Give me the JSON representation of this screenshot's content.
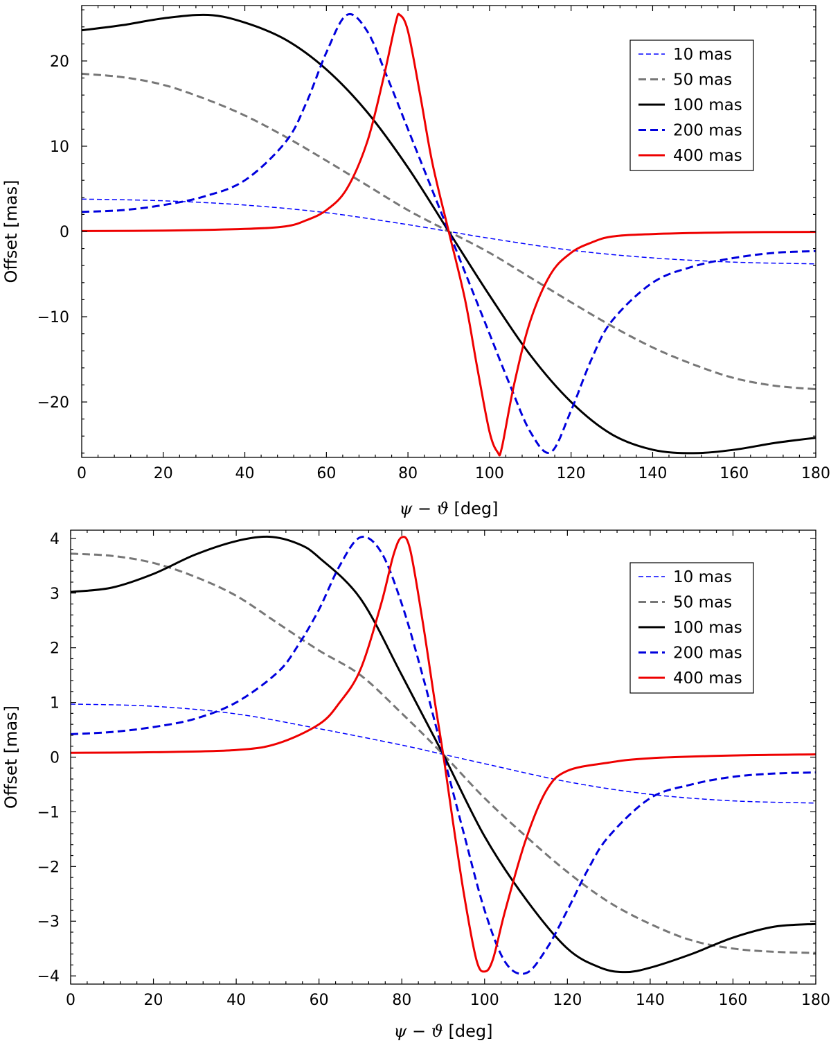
{
  "chart_data": [
    {
      "type": "line",
      "panel": "top",
      "xlabel": {
        "psi": "ψ",
        "minus": " − ",
        "theta": "ϑ",
        "unit": " [deg]"
      },
      "ylabel": "Offset [mas]",
      "xlim": [
        0,
        180
      ],
      "ylim": [
        -26.5,
        26.5
      ],
      "xticks": [
        0,
        20,
        40,
        60,
        80,
        100,
        120,
        140,
        160,
        180
      ],
      "yticks": [
        -20,
        -10,
        0,
        10,
        20
      ],
      "legend_position": "top-right",
      "series": [
        {
          "name": "10 mas",
          "color": "#0000ff",
          "style": "dashed-thin",
          "points": [
            [
              0,
              3.8
            ],
            [
              20,
              3.6
            ],
            [
              40,
              3.1
            ],
            [
              60,
              2.2
            ],
            [
              80,
              0.8
            ],
            [
              90,
              0
            ],
            [
              100,
              -0.8
            ],
            [
              120,
              -2.2
            ],
            [
              140,
              -3.1
            ],
            [
              160,
              -3.6
            ],
            [
              180,
              -3.8
            ]
          ]
        },
        {
          "name": "50 mas",
          "color": "#777777",
          "style": "dashed",
          "points": [
            [
              0,
              18.5
            ],
            [
              10,
              18.1
            ],
            [
              20,
              17.2
            ],
            [
              30,
              15.6
            ],
            [
              40,
              13.6
            ],
            [
              50,
              11.1
            ],
            [
              60,
              8.3
            ],
            [
              70,
              5.4
            ],
            [
              80,
              2.5
            ],
            [
              90,
              0
            ],
            [
              100,
              -2.5
            ],
            [
              110,
              -5.4
            ],
            [
              120,
              -8.3
            ],
            [
              130,
              -11.1
            ],
            [
              140,
              -13.6
            ],
            [
              150,
              -15.6
            ],
            [
              160,
              -17.2
            ],
            [
              170,
              -18.1
            ],
            [
              180,
              -18.5
            ]
          ]
        },
        {
          "name": "100 mas",
          "color": "#000000",
          "style": "solid",
          "points": [
            [
              0,
              23.6
            ],
            [
              10,
              24.2
            ],
            [
              20,
              25.0
            ],
            [
              31,
              25.4
            ],
            [
              40,
              24.5
            ],
            [
              50,
              22.5
            ],
            [
              60,
              19.0
            ],
            [
              70,
              14.0
            ],
            [
              80,
              7.5
            ],
            [
              90,
              0
            ],
            [
              100,
              -7.5
            ],
            [
              110,
              -14.5
            ],
            [
              120,
              -20.0
            ],
            [
              130,
              -23.8
            ],
            [
              140,
              -25.6
            ],
            [
              150,
              -26.0
            ],
            [
              160,
              -25.6
            ],
            [
              170,
              -24.8
            ],
            [
              180,
              -24.2
            ]
          ]
        },
        {
          "name": "200 mas",
          "color": "#0000dd",
          "style": "dashed-thick",
          "points": [
            [
              0,
              2.3
            ],
            [
              10,
              2.5
            ],
            [
              20,
              3.1
            ],
            [
              30,
              4.1
            ],
            [
              40,
              6.0
            ],
            [
              50,
              10.5
            ],
            [
              55,
              15.0
            ],
            [
              60,
              21.0
            ],
            [
              65,
              25.4
            ],
            [
              70,
              23.5
            ],
            [
              75,
              18.0
            ],
            [
              80,
              12.0
            ],
            [
              85,
              6.0
            ],
            [
              90,
              0
            ],
            [
              95,
              -6.0
            ],
            [
              100,
              -12.0
            ],
            [
              105,
              -18.0
            ],
            [
              110,
              -23.5
            ],
            [
              115,
              -25.9
            ],
            [
              120,
              -21.0
            ],
            [
              125,
              -15.0
            ],
            [
              130,
              -10.5
            ],
            [
              140,
              -6.0
            ],
            [
              150,
              -4.1
            ],
            [
              160,
              -3.1
            ],
            [
              170,
              -2.5
            ],
            [
              180,
              -2.3
            ]
          ]
        },
        {
          "name": "400 mas",
          "color": "#ee0000",
          "style": "solid",
          "points": [
            [
              0,
              0.05
            ],
            [
              20,
              0.1
            ],
            [
              40,
              0.3
            ],
            [
              50,
              0.6
            ],
            [
              55,
              1.3
            ],
            [
              60,
              2.5
            ],
            [
              65,
              5.0
            ],
            [
              70,
              10.5
            ],
            [
              74,
              18.0
            ],
            [
              77,
              24.5
            ],
            [
              78,
              25.4
            ],
            [
              80,
              23.5
            ],
            [
              83,
              16.0
            ],
            [
              86,
              8.0
            ],
            [
              90,
              0
            ],
            [
              94,
              -8.0
            ],
            [
              97,
              -16.0
            ],
            [
              100,
              -23.5
            ],
            [
              102,
              -25.9
            ],
            [
              103,
              -25.4
            ],
            [
              106,
              -18.0
            ],
            [
              110,
              -10.5
            ],
            [
              115,
              -5.0
            ],
            [
              120,
              -2.5
            ],
            [
              125,
              -1.3
            ],
            [
              130,
              -0.6
            ],
            [
              140,
              -0.3
            ],
            [
              160,
              -0.1
            ],
            [
              180,
              -0.05
            ]
          ]
        }
      ]
    },
    {
      "type": "line",
      "panel": "bottom",
      "xlabel": {
        "psi": "ψ",
        "minus": " − ",
        "theta": "ϑ",
        "unit": " [deg]"
      },
      "ylabel": "Offset [mas]",
      "xlim": [
        0,
        180
      ],
      "ylim": [
        -4.15,
        4.15
      ],
      "xticks": [
        0,
        20,
        40,
        60,
        80,
        100,
        120,
        140,
        160,
        180
      ],
      "yticks": [
        -4,
        -3,
        -2,
        -1,
        0,
        1,
        2,
        3,
        4
      ],
      "legend_position": "top-right",
      "series": [
        {
          "name": "10 mas",
          "color": "#0000ff",
          "style": "dashed-thin",
          "points": [
            [
              0,
              0.97
            ],
            [
              20,
              0.93
            ],
            [
              40,
              0.79
            ],
            [
              60,
              0.52
            ],
            [
              80,
              0.22
            ],
            [
              90,
              0.05
            ],
            [
              100,
              -0.12
            ],
            [
              120,
              -0.45
            ],
            [
              140,
              -0.68
            ],
            [
              160,
              -0.8
            ],
            [
              180,
              -0.84
            ]
          ]
        },
        {
          "name": "50 mas",
          "color": "#777777",
          "style": "dashed",
          "points": [
            [
              0,
              3.72
            ],
            [
              10,
              3.68
            ],
            [
              20,
              3.55
            ],
            [
              30,
              3.3
            ],
            [
              40,
              2.95
            ],
            [
              50,
              2.45
            ],
            [
              60,
              1.95
            ],
            [
              70,
              1.5
            ],
            [
              80,
              0.8
            ],
            [
              90,
              0.05
            ],
            [
              100,
              -0.75
            ],
            [
              110,
              -1.45
            ],
            [
              120,
              -2.1
            ],
            [
              130,
              -2.65
            ],
            [
              140,
              -3.05
            ],
            [
              150,
              -3.35
            ],
            [
              160,
              -3.5
            ],
            [
              170,
              -3.56
            ],
            [
              180,
              -3.58
            ]
          ]
        },
        {
          "name": "100 mas",
          "color": "#000000",
          "style": "solid",
          "points": [
            [
              0,
              3.02
            ],
            [
              10,
              3.1
            ],
            [
              20,
              3.35
            ],
            [
              30,
              3.7
            ],
            [
              40,
              3.95
            ],
            [
              48,
              4.03
            ],
            [
              55,
              3.9
            ],
            [
              60,
              3.65
            ],
            [
              70,
              2.9
            ],
            [
              80,
              1.5
            ],
            [
              90,
              0.05
            ],
            [
              100,
              -1.45
            ],
            [
              110,
              -2.6
            ],
            [
              120,
              -3.5
            ],
            [
              128,
              -3.85
            ],
            [
              134,
              -3.93
            ],
            [
              140,
              -3.85
            ],
            [
              150,
              -3.6
            ],
            [
              160,
              -3.3
            ],
            [
              170,
              -3.1
            ],
            [
              180,
              -3.05
            ]
          ]
        },
        {
          "name": "200 mas",
          "color": "#0000dd",
          "style": "dashed-thick",
          "points": [
            [
              0,
              0.42
            ],
            [
              10,
              0.46
            ],
            [
              20,
              0.55
            ],
            [
              30,
              0.7
            ],
            [
              40,
              1.0
            ],
            [
              50,
              1.55
            ],
            [
              55,
              2.05
            ],
            [
              60,
              2.7
            ],
            [
              65,
              3.5
            ],
            [
              70,
              4.02
            ],
            [
              75,
              3.75
            ],
            [
              80,
              2.8
            ],
            [
              85,
              1.5
            ],
            [
              90,
              0.05
            ],
            [
              95,
              -1.4
            ],
            [
              100,
              -2.8
            ],
            [
              105,
              -3.75
            ],
            [
              110,
              -3.95
            ],
            [
              115,
              -3.5
            ],
            [
              120,
              -2.8
            ],
            [
              125,
              -2.05
            ],
            [
              130,
              -1.45
            ],
            [
              140,
              -0.75
            ],
            [
              150,
              -0.5
            ],
            [
              160,
              -0.36
            ],
            [
              170,
              -0.3
            ],
            [
              180,
              -0.28
            ]
          ]
        },
        {
          "name": "400 mas",
          "color": "#ee0000",
          "style": "solid",
          "points": [
            [
              0,
              0.08
            ],
            [
              20,
              0.09
            ],
            [
              40,
              0.13
            ],
            [
              50,
              0.25
            ],
            [
              60,
              0.6
            ],
            [
              65,
              1.0
            ],
            [
              70,
              1.6
            ],
            [
              75,
              2.8
            ],
            [
              78,
              3.7
            ],
            [
              80,
              4.02
            ],
            [
              82,
              3.8
            ],
            [
              85,
              2.5
            ],
            [
              88,
              1.0
            ],
            [
              90,
              0.05
            ],
            [
              92,
              -1.0
            ],
            [
              95,
              -2.5
            ],
            [
              98,
              -3.7
            ],
            [
              100,
              -3.92
            ],
            [
              102,
              -3.7
            ],
            [
              105,
              -2.8
            ],
            [
              110,
              -1.5
            ],
            [
              115,
              -0.6
            ],
            [
              120,
              -0.25
            ],
            [
              130,
              -0.1
            ],
            [
              140,
              -0.02
            ],
            [
              160,
              0.03
            ],
            [
              180,
              0.05
            ]
          ]
        }
      ]
    }
  ]
}
